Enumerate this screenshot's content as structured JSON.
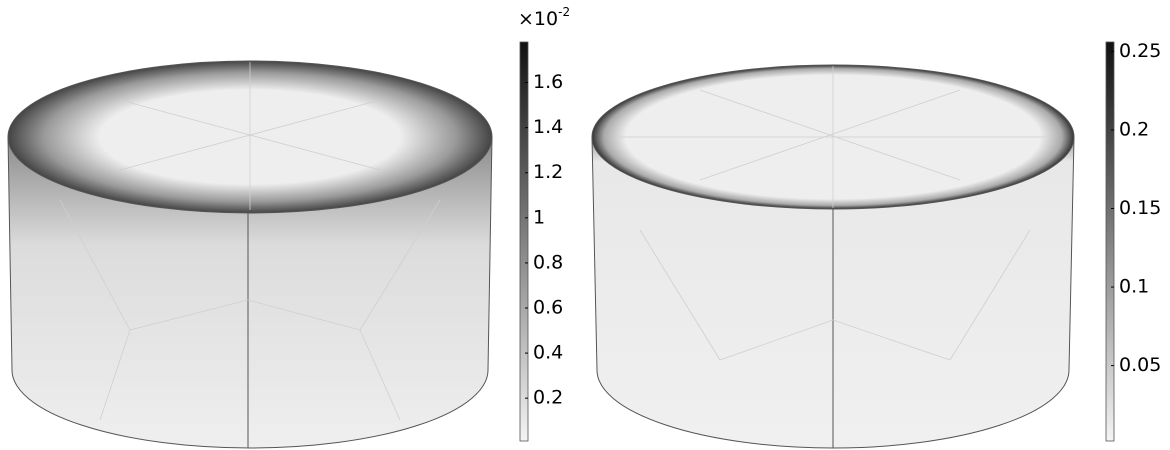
{
  "chart_data": [
    {
      "type": "surface",
      "multiplier": {
        "base": "×10",
        "exponent": "-2"
      },
      "clim": [
        0.01,
        1.78
      ],
      "cticks": [
        0.2,
        0.4,
        0.6,
        0.8,
        1,
        1.2,
        1.4,
        1.6
      ]
    },
    {
      "type": "surface",
      "clim": [
        0.002,
        0.256
      ],
      "cticks": [
        0.05,
        0.1,
        0.15,
        0.2,
        0.25
      ]
    }
  ]
}
